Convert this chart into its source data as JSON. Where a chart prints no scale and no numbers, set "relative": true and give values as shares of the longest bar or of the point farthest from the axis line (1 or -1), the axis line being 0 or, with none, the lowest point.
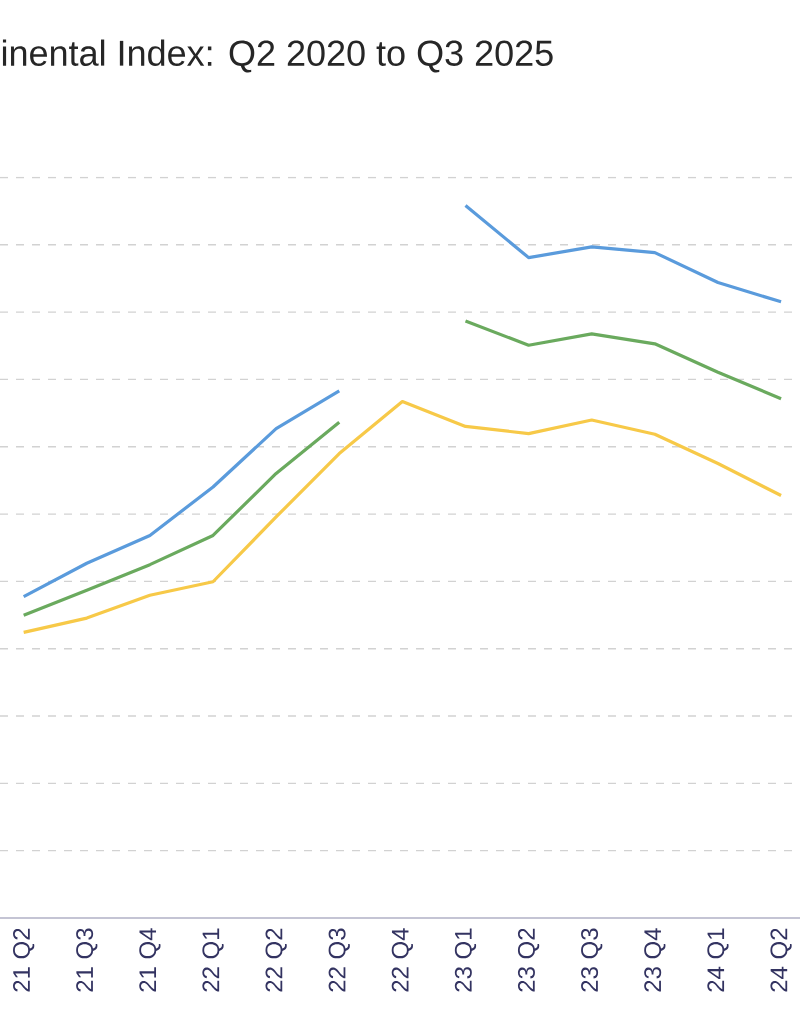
{
  "chart_data": {
    "type": "line",
    "title": "inental Index: Q2 2020 to Q3 2025",
    "relative": true,
    "grid": "y",
    "categories": [
      "21 Q2",
      "21 Q3",
      "21 Q4",
      "22 Q1",
      "22 Q2",
      "22 Q3",
      "22 Q4",
      "23 Q1",
      "23 Q2",
      "23 Q3",
      "23 Q4",
      "24 Q1",
      "24 Q2"
    ],
    "series": [
      {
        "color": "#5a9bdc",
        "values": [
          0.451,
          0.498,
          0.537,
          0.605,
          0.687,
          0.74,
          null,
          1.0,
          0.927,
          0.942,
          0.934,
          0.892,
          0.865
        ]
      },
      {
        "color": "#6aaa5e",
        "values": [
          0.425,
          0.46,
          0.496,
          0.537,
          0.624,
          0.696,
          null,
          0.838,
          0.804,
          0.82,
          0.806,
          0.766,
          0.729
        ]
      },
      {
        "color": "#f7c948",
        "values": [
          0.401,
          0.421,
          0.453,
          0.472,
          0.563,
          0.652,
          0.725,
          0.69,
          0.68,
          0.699,
          0.679,
          0.638,
          0.593
        ]
      }
    ]
  }
}
